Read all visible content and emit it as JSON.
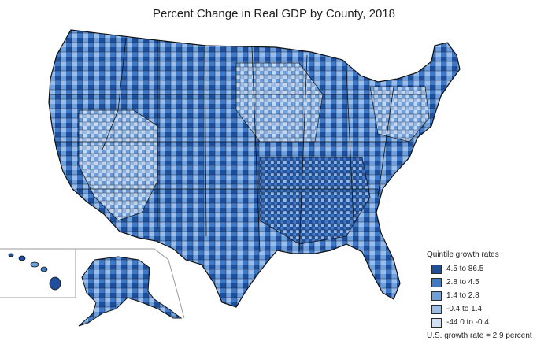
{
  "title": "Percent Change in Real GDP by County, 2018",
  "legend": {
    "title": "Quintile growth rates",
    "items": [
      {
        "label": "4.5 to 86.5",
        "color": "#1e4f9c"
      },
      {
        "label": "2.8 to 4.5",
        "color": "#3f7ac8"
      },
      {
        "label": "1.4 to 2.8",
        "color": "#6d9fdb"
      },
      {
        "label": "-0.4 to 1.4",
        "color": "#9cbde8"
      },
      {
        "label": "-44.0 to -0.4",
        "color": "#cfe0f5"
      }
    ],
    "note": "U.S. growth rate = 2.9 percent"
  }
}
